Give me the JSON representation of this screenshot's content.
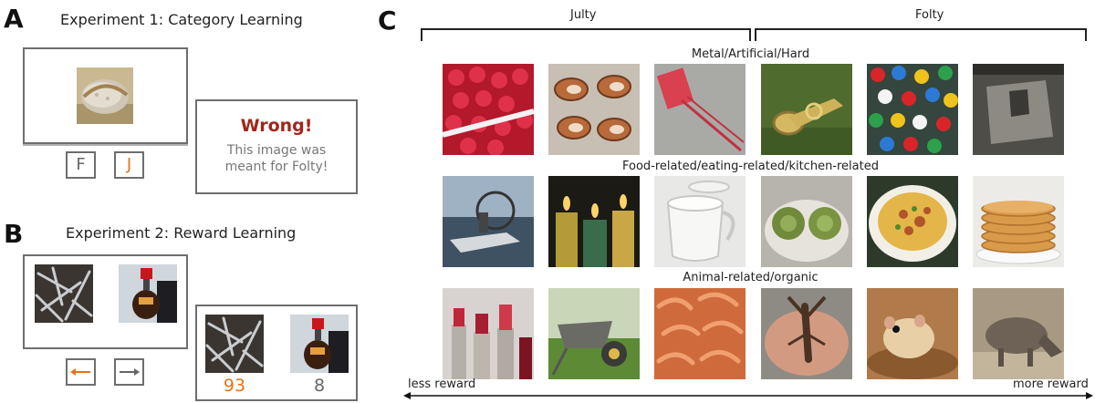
{
  "panel_a": {
    "letter": "A",
    "title": "Experiment 1: Category Learning",
    "keys": [
      "F",
      "J"
    ],
    "feedback_title": "Wrong!",
    "feedback_line1": "This image was",
    "feedback_line2": "meant for Folty!"
  },
  "panel_b": {
    "letter": "B",
    "title": "Experiment 2: Reward Learning",
    "arrow_left": "←",
    "arrow_right": "→",
    "reward_left": "93",
    "reward_right": "8"
  },
  "panel_c": {
    "letter": "C",
    "group_left": "Julty",
    "group_right": "Folty",
    "rows": [
      {
        "label": "Metal/Artificial/Hard",
        "images": [
          "raspberries",
          "seashells",
          "fly-swatter",
          "tuba",
          "thumbtacks",
          "stone-block"
        ]
      },
      {
        "label": "Food-related/eating-related/kitchen-related",
        "images": [
          "airboat",
          "candles",
          "teacups",
          "artichokes",
          "nachos",
          "pancakes"
        ]
      },
      {
        "label": "Animal-related/organic",
        "images": [
          "lipsticks",
          "wheelbarrow",
          "shrimps",
          "crayfish",
          "hamster",
          "boar"
        ]
      }
    ],
    "axis_left": "less reward",
    "axis_right": "more reward"
  },
  "colors": {
    "accent_orange": "#e4731b",
    "wrong_red": "#a2261a",
    "frame_gray": "#6e6e6e"
  }
}
